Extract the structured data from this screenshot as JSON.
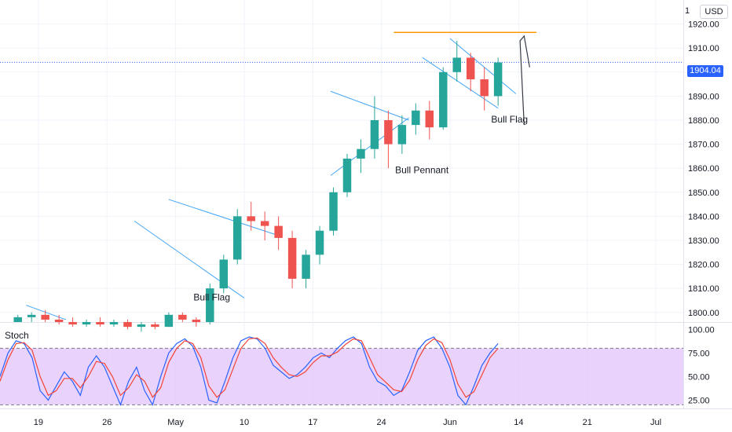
{
  "currency": "USD",
  "top_partial_tick": "1",
  "current_price_label": "1904.04",
  "oscillator_name": "Stoch",
  "colors": {
    "up": "#26a69a",
    "down": "#ef5350",
    "channel": "#42a5f5",
    "resistance": "#ff9800",
    "arrow": "#363a45",
    "stoch_k": "#2962ff",
    "stoch_d": "#f44336",
    "stoch_band": "#e1c4fb",
    "price_tag": "#2962ff"
  },
  "annotations": [
    {
      "text": "Bull Flag",
      "x": 12.8,
      "y": 1805
    },
    {
      "text": "Bull Pennant",
      "x": 27.5,
      "y": 1858
    },
    {
      "text": "Bull Flag",
      "x": 34.5,
      "y": 1879
    }
  ],
  "chart_data": [
    {
      "type": "candlestick",
      "title": "",
      "xlabel": "",
      "ylabel": "",
      "x_tick_labels": [
        "19",
        "26",
        "May",
        "10",
        "17",
        "24",
        "Jun",
        "14",
        "21",
        "Jul"
      ],
      "x_tick_positions": [
        1.5,
        6.5,
        11.5,
        16.5,
        21.5,
        26.5,
        31.5,
        36.5,
        41.5,
        46.5
      ],
      "y_tick_labels": [
        "1800.00",
        "1810.00",
        "1820.00",
        "1830.00",
        "1840.00",
        "1850.00",
        "1860.00",
        "1870.00",
        "1880.00",
        "1890.00",
        "1900.00",
        "1910.00",
        "1920.00"
      ],
      "ylim": [
        1796,
        1930
      ],
      "xlim": [
        -1.3,
        48.5
      ],
      "last_price": 1904.04,
      "resistance_level": 1916.5,
      "candles_ohlc": [
        [
          1796,
          1799,
          1796,
          1798
        ],
        [
          1798,
          1800,
          1796,
          1799
        ],
        [
          1799,
          1801,
          1796,
          1797
        ],
        [
          1797,
          1799,
          1795,
          1796
        ],
        [
          1796,
          1798,
          1794,
          1795
        ],
        [
          1795,
          1797,
          1794,
          1796
        ],
        [
          1796,
          1798,
          1794,
          1795
        ],
        [
          1795,
          1797,
          1794,
          1796
        ],
        [
          1796,
          1797,
          1793,
          1794
        ],
        [
          1794,
          1796,
          1792,
          1795
        ],
        [
          1795,
          1796,
          1793,
          1794
        ],
        [
          1794,
          1800,
          1794,
          1799
        ],
        [
          1799,
          1800,
          1796,
          1797
        ],
        [
          1797,
          1798,
          1794,
          1796
        ],
        [
          1796,
          1812,
          1795,
          1810
        ],
        [
          1810,
          1824,
          1808,
          1822
        ],
        [
          1822,
          1843,
          1820,
          1840
        ],
        [
          1840,
          1846,
          1834,
          1838
        ],
        [
          1838,
          1842,
          1830,
          1836
        ],
        [
          1836,
          1840,
          1826,
          1831
        ],
        [
          1831,
          1834,
          1810,
          1814
        ],
        [
          1814,
          1826,
          1810,
          1824
        ],
        [
          1824,
          1836,
          1820,
          1834
        ],
        [
          1834,
          1852,
          1832,
          1850
        ],
        [
          1850,
          1866,
          1848,
          1864
        ],
        [
          1864,
          1872,
          1858,
          1868
        ],
        [
          1868,
          1890,
          1864,
          1880
        ],
        [
          1880,
          1884,
          1860,
          1870
        ],
        [
          1870,
          1882,
          1866,
          1878
        ],
        [
          1878,
          1887,
          1874,
          1884
        ],
        [
          1884,
          1888,
          1872,
          1877
        ],
        [
          1877,
          1902,
          1876,
          1900
        ],
        [
          1900,
          1913,
          1896,
          1906
        ],
        [
          1906,
          1908,
          1892,
          1897
        ],
        [
          1897,
          1902,
          1884,
          1890
        ],
        [
          1890,
          1906,
          1886,
          1904
        ]
      ],
      "channels": [
        {
          "from": [
            11.0,
            1847
          ],
          "to": [
            19.0,
            1832
          ]
        },
        {
          "from": [
            8.5,
            1838
          ],
          "to": [
            16.5,
            1806
          ]
        },
        {
          "from": [
            22.8,
            1892
          ],
          "to": [
            28.5,
            1880
          ]
        },
        {
          "from": [
            22.8,
            1857
          ],
          "to": [
            28.5,
            1881
          ]
        },
        {
          "from": [
            31.5,
            1914
          ],
          "to": [
            36.3,
            1891
          ]
        },
        {
          "from": [
            29.5,
            1906
          ],
          "to": [
            35.0,
            1885
          ]
        },
        {
          "from": [
            0.6,
            1803
          ],
          "to": [
            3.5,
            1797
          ]
        }
      ],
      "arrow": {
        "points": [
          [
            36.9,
            1878
          ],
          [
            36.6,
            1913
          ],
          [
            36.9,
            1915
          ],
          [
            37.3,
            1902
          ]
        ]
      }
    },
    {
      "type": "line",
      "title": "Stoch",
      "ylim": [
        17,
        107
      ],
      "y_tick_labels": [
        "25.00",
        "50.00",
        "75.00",
        "100.00"
      ],
      "bands": [
        20,
        80
      ],
      "series": [
        {
          "name": "",
          "values": [
            50,
            75,
            88,
            85,
            70,
            35,
            25,
            40,
            55,
            45,
            30,
            60,
            72,
            60,
            40,
            20,
            45,
            60,
            35,
            20,
            50,
            75,
            85,
            90,
            82,
            60,
            25,
            22,
            45,
            70,
            88,
            92,
            90,
            80,
            62,
            55,
            48,
            52,
            60,
            70,
            75,
            70,
            80,
            88,
            92,
            85,
            60,
            45,
            40,
            30,
            35,
            55,
            78,
            88,
            92,
            80,
            60,
            30,
            20,
            40,
            62,
            75,
            85
          ]
        },
        {
          "name": "",
          "values": [
            45,
            68,
            85,
            86,
            78,
            50,
            30,
            35,
            48,
            48,
            38,
            50,
            66,
            64,
            50,
            30,
            38,
            52,
            45,
            28,
            38,
            65,
            80,
            88,
            85,
            70,
            40,
            28,
            36,
            58,
            80,
            90,
            91,
            85,
            70,
            60,
            52,
            50,
            55,
            65,
            72,
            72,
            76,
            84,
            90,
            88,
            70,
            52,
            44,
            36,
            34,
            46,
            68,
            83,
            90,
            86,
            68,
            42,
            28,
            34,
            52,
            70,
            80
          ]
        }
      ]
    }
  ]
}
